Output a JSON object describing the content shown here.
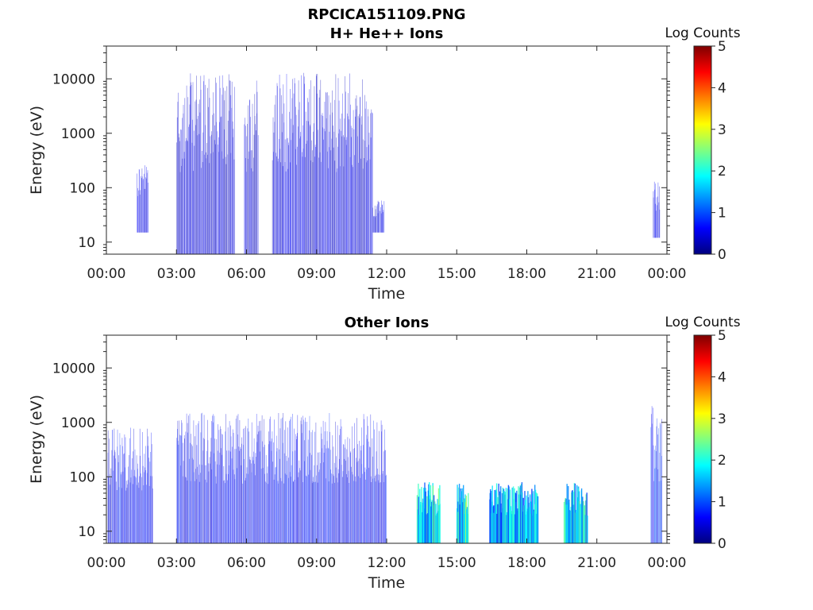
{
  "figure": {
    "file_title": "RPCICA151109.PNG"
  },
  "chart_data": [
    {
      "type": "heatmap",
      "title": "H+ He++ Ions",
      "xlabel": "Time",
      "ylabel": "Energy (eV)",
      "x_ticks": [
        "00:00",
        "03:00",
        "06:00",
        "09:00",
        "12:00",
        "15:00",
        "18:00",
        "21:00",
        "00:00"
      ],
      "y_ticks": [
        "10",
        "100",
        "1000",
        "10000"
      ],
      "y_scale": "log",
      "ylim": [
        6,
        40000
      ],
      "xlim_hours": [
        0,
        24
      ],
      "colorbar": {
        "title": "Log Counts",
        "ticks": [
          "0",
          "1",
          "2",
          "3",
          "4",
          "5"
        ],
        "range": [
          0,
          5
        ],
        "colormap": "jet"
      },
      "activity_intervals": [
        {
          "start_hour": 1.3,
          "end_hour": 1.8,
          "energy_min": 15,
          "energy_max": 300,
          "level": 0.5
        },
        {
          "start_hour": 3.0,
          "end_hour": 5.5,
          "energy_min": 6,
          "energy_max": 13000,
          "level": 0.4
        },
        {
          "start_hour": 5.9,
          "end_hour": 6.5,
          "energy_min": 6,
          "energy_max": 10000,
          "level": 0.4
        },
        {
          "start_hour": 7.1,
          "end_hour": 11.4,
          "energy_min": 6,
          "energy_max": 13000,
          "level": 0.45
        },
        {
          "start_hour": 11.4,
          "end_hour": 11.9,
          "energy_min": 15,
          "energy_max": 60,
          "level": 0.5
        },
        {
          "start_hour": 23.4,
          "end_hour": 23.7,
          "energy_min": 12,
          "energy_max": 130,
          "level": 0.5
        }
      ]
    },
    {
      "type": "heatmap",
      "title": "Other Ions",
      "xlabel": "Time",
      "ylabel": "Energy (eV)",
      "x_ticks": [
        "00:00",
        "03:00",
        "06:00",
        "09:00",
        "12:00",
        "15:00",
        "18:00",
        "21:00",
        "00:00"
      ],
      "y_ticks": [
        "10",
        "100",
        "1000",
        "10000"
      ],
      "y_scale": "log",
      "ylim": [
        6,
        40000
      ],
      "xlim_hours": [
        0,
        24
      ],
      "colorbar": {
        "title": "Log Counts",
        "ticks": [
          "0",
          "1",
          "2",
          "3",
          "4",
          "5"
        ],
        "range": [
          0,
          5
        ],
        "colormap": "jet"
      },
      "activity_intervals": [
        {
          "start_hour": 0.05,
          "end_hour": 2.0,
          "energy_min": 6,
          "energy_max": 800,
          "level": 0.6
        },
        {
          "start_hour": 3.0,
          "end_hour": 12.0,
          "energy_min": 6,
          "energy_max": 1500,
          "level": 0.6
        },
        {
          "start_hour": 13.3,
          "end_hour": 14.3,
          "energy_min": 6,
          "energy_max": 80,
          "level": 1.7
        },
        {
          "start_hour": 15.0,
          "end_hour": 15.5,
          "energy_min": 6,
          "energy_max": 80,
          "level": 1.8
        },
        {
          "start_hour": 16.4,
          "end_hour": 18.5,
          "energy_min": 6,
          "energy_max": 80,
          "level": 1.5
        },
        {
          "start_hour": 19.6,
          "end_hour": 20.6,
          "energy_min": 6,
          "energy_max": 80,
          "level": 1.6
        },
        {
          "start_hour": 23.3,
          "end_hour": 23.8,
          "energy_min": 6,
          "energy_max": 2000,
          "level": 0.8
        }
      ]
    }
  ]
}
